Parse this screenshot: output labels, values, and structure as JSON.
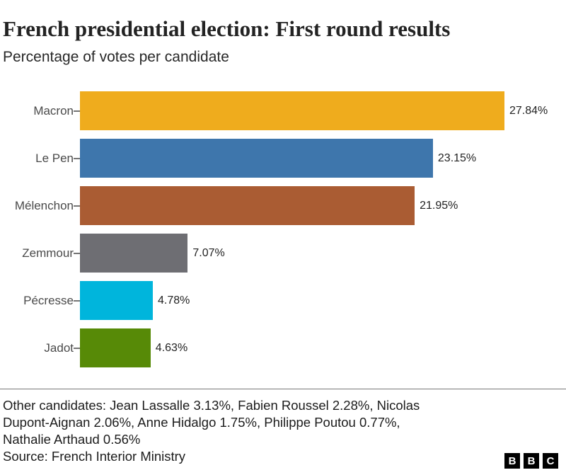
{
  "header": {
    "title": "French presidential election: First round results",
    "subtitle": "Percentage of votes per candidate"
  },
  "chart_data": {
    "type": "bar",
    "orientation": "horizontal",
    "title": "French presidential election: First round results",
    "subtitle": "Percentage of votes per candidate",
    "categories": [
      "Macron",
      "Le Pen",
      "Mélenchon",
      "Zemmour",
      "Pécresse",
      "Jadot"
    ],
    "values": [
      27.84,
      23.15,
      21.95,
      7.07,
      4.78,
      4.63
    ],
    "value_labels": [
      "27.84%",
      "23.15%",
      "21.95%",
      "7.07%",
      "4.78%",
      "4.63%"
    ],
    "bar_colors": [
      "#efac1d",
      "#3e76ac",
      "#aa5c33",
      "#6e6e73",
      "#00b5dc",
      "#578a07"
    ],
    "xlim": [
      0,
      27.84
    ],
    "grid": false,
    "legend": "none",
    "axis_tick_color": "#757575"
  },
  "footer": {
    "other_candidates_lines": [
      "Other candidates: Jean Lassalle 3.13%, Fabien Roussel 2.28%, Nicolas",
      "Dupont-Aignan 2.06%, Anne Hidalgo 1.75%, Philippe Poutou 0.77%,",
      "Nathalie Arthaud 0.56%"
    ],
    "source": "Source: French Interior Ministry"
  },
  "logo": {
    "letters": [
      "B",
      "B",
      "C"
    ]
  },
  "colors": {
    "divider": "#757575",
    "text_dark": "#232323",
    "label_gray": "#4a4a4a"
  }
}
